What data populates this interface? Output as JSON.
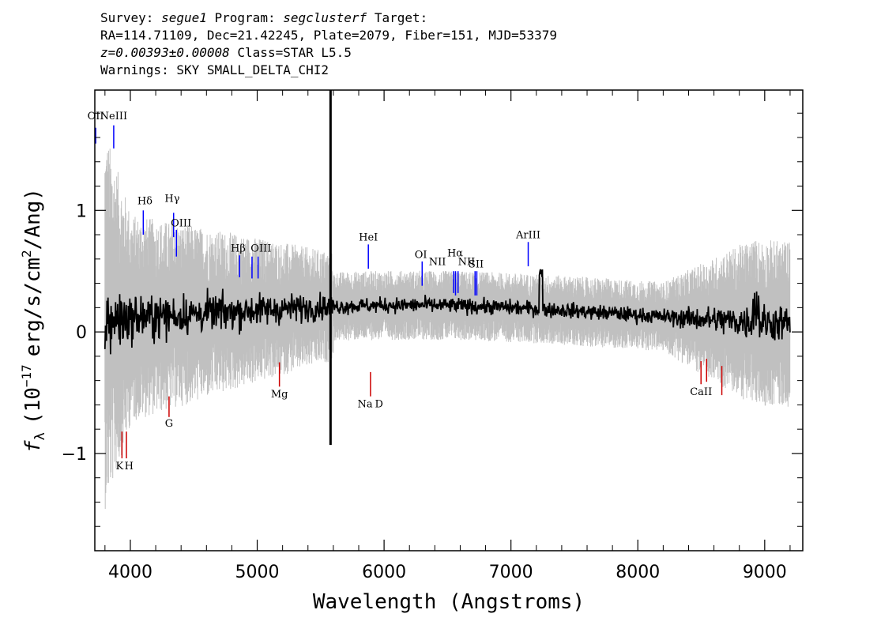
{
  "header": {
    "survey_label": "Survey:",
    "survey_value": "segue1",
    "program_label": "Program:",
    "program_value": "segclusterf",
    "target_label": "Target:",
    "line2": "RA=114.71109, Dec=21.42245, Plate=2079, Fiber=151, MJD=53379",
    "z_text": "z=0.00393±0.00008",
    "class_text": "Class=STAR L5.5",
    "warnings": "Warnings: SKY SMALL_DELTA_CHI2"
  },
  "chart_data": {
    "type": "line",
    "xlabel": "Wavelength (Angstroms)",
    "ylabel_parts": {
      "f": "f",
      "sub": "λ",
      "open": "(10",
      "exp": "−17",
      "mid": "erg/s/cm",
      "sq": "2",
      "close": "/Ang)"
    },
    "xlim": [
      3720,
      9300
    ],
    "ylim": [
      -1.8,
      1.99
    ],
    "xticks": [
      4000,
      5000,
      6000,
      7000,
      8000,
      9000
    ],
    "xtick_labels": [
      "4000",
      "5000",
      "6000",
      "7000",
      "8000",
      "9000"
    ],
    "yticks": [
      -1,
      0,
      1
    ],
    "ytick_labels": [
      "−1",
      "0",
      "1"
    ],
    "grid": false,
    "spectrum_range": [
      3800,
      9200
    ],
    "series": [
      {
        "values_note": "",
        "color": "#000000"
      },
      {
        "color": "#c0c0c0"
      }
    ],
    "sky_line_spike": {
      "x": 5578,
      "y_top": 1.99,
      "y_bottom": -0.93
    },
    "emission_lines": [
      {
        "label": "OII",
        "x": 3727,
        "y1": 1.55,
        "y2": 1.68,
        "lx": 3727,
        "ly": 1.75
      },
      {
        "label": "NeIII",
        "x": 3869,
        "y1": 1.51,
        "y2": 1.7,
        "lx": 3869,
        "ly": 1.75
      },
      {
        "label": "Hδ",
        "x": 4102,
        "y1": 0.8,
        "y2": 1.0,
        "lx": 4115,
        "ly": 1.05
      },
      {
        "label": "Hγ",
        "x": 4341,
        "y1": 0.78,
        "y2": 0.98,
        "lx": 4330,
        "ly": 1.07
      },
      {
        "label": "OIII",
        "x": 4363,
        "y1": 0.62,
        "y2": 0.84,
        "lx": 4400,
        "ly": 0.87
      },
      {
        "label": "Hβ",
        "x": 4861,
        "y1": 0.45,
        "y2": 0.63,
        "lx": 4850,
        "ly": 0.66
      },
      {
        "label": "OIII",
        "x": 4959,
        "y1": 0.44,
        "y2": 0.62,
        "lx": 5030,
        "ly": 0.66
      },
      {
        "label": "",
        "x": 5007,
        "y1": 0.44,
        "y2": 0.62
      },
      {
        "label": "HeI",
        "x": 5876,
        "y1": 0.52,
        "y2": 0.72,
        "lx": 5876,
        "ly": 0.75
      },
      {
        "label": "OI",
        "x": 6300,
        "y1": 0.38,
        "y2": 0.58,
        "lx": 6290,
        "ly": 0.61
      },
      {
        "label": "NII",
        "x": 6548,
        "y1": 0.32,
        "y2": 0.5,
        "lx": 6420,
        "ly": 0.55
      },
      {
        "label": "Hα",
        "x": 6563,
        "y1": 0.3,
        "y2": 0.5,
        "lx": 6560,
        "ly": 0.62
      },
      {
        "label": "",
        "x": 6583,
        "y1": 0.32,
        "y2": 0.5
      },
      {
        "label": "NII",
        "x": 6583,
        "lx": 6650,
        "ly": 0.55,
        "noline": true
      },
      {
        "label": "SII",
        "x": 6717,
        "y1": 0.3,
        "y2": 0.5,
        "lx": 6725,
        "ly": 0.53
      },
      {
        "label": "",
        "x": 6731,
        "y1": 0.3,
        "y2": 0.5
      },
      {
        "label": "ArIII",
        "x": 7136,
        "y1": 0.54,
        "y2": 0.74,
        "lx": 7136,
        "ly": 0.77
      }
    ],
    "absorption_lines": [
      {
        "label": "K",
        "x": 3934,
        "y1": -0.82,
        "y2": -1.04,
        "lx": 3915,
        "ly": -1.13
      },
      {
        "label": "H",
        "x": 3969,
        "y1": -0.82,
        "y2": -1.04,
        "lx": 3990,
        "ly": -1.13
      },
      {
        "label": "G",
        "x": 4305,
        "y1": -0.53,
        "y2": -0.7,
        "lx": 4305,
        "ly": -0.78
      },
      {
        "label": "Mg",
        "x": 5175,
        "y1": -0.25,
        "y2": -0.45,
        "lx": 5175,
        "ly": -0.54
      },
      {
        "label": "Na",
        "x": 5893,
        "y1": -0.33,
        "y2": -0.53,
        "lx": 5850,
        "ly": -0.62
      },
      {
        "label": "D",
        "x": 5893,
        "lx": 5960,
        "ly": -0.62,
        "noline": true
      },
      {
        "label": "CaII",
        "x": 8498,
        "y1": -0.24,
        "y2": -0.43,
        "lx": 8498,
        "ly": -0.52
      },
      {
        "label": "",
        "x": 8542,
        "y1": -0.22,
        "y2": -0.41
      },
      {
        "label": "",
        "x": 8662,
        "y1": -0.28,
        "y2": -0.52
      }
    ]
  }
}
